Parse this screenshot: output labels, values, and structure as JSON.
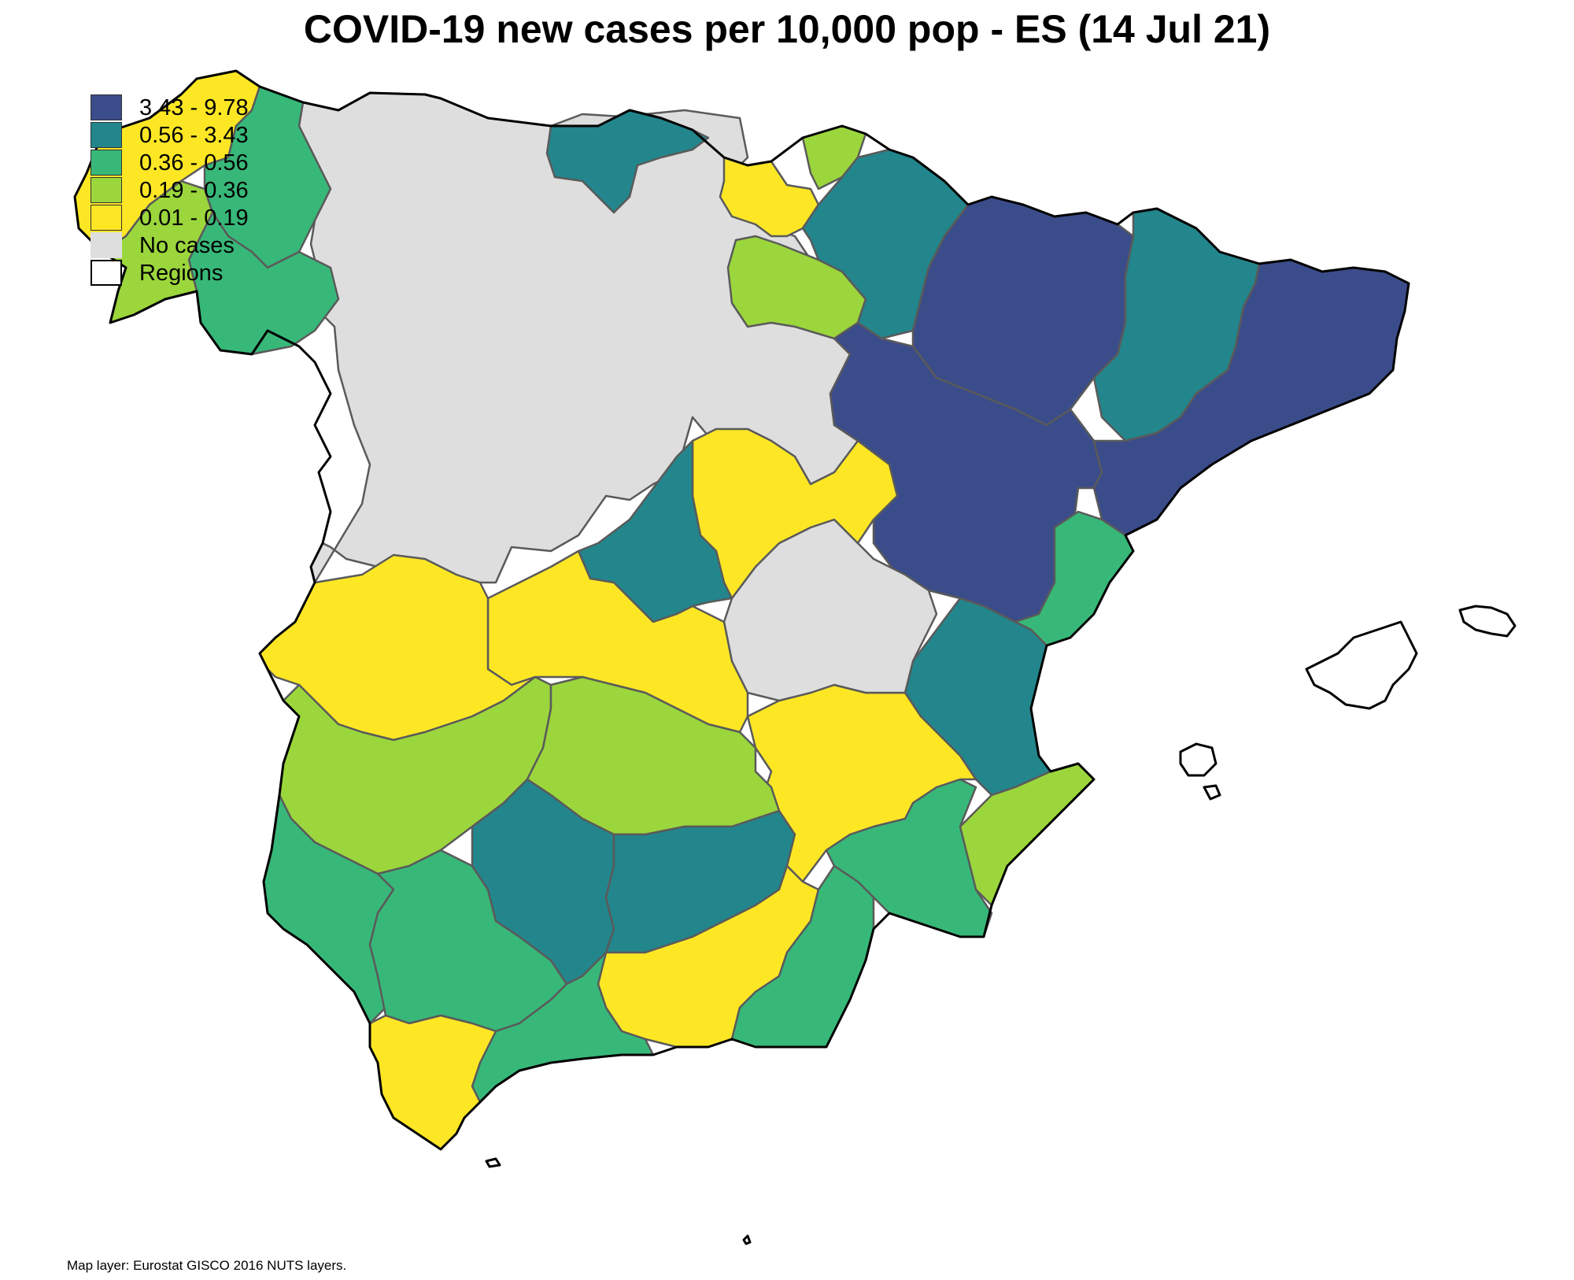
{
  "title": "COVID-19 new cases per 10,000 pop - ES (14 Jul 21)",
  "colors": {
    "c1": "#3b4c8a",
    "c2": "#22868c",
    "c3": "#37b879",
    "c4": "#9bd63c",
    "c5": "#fde725",
    "none": "#dedede"
  },
  "legend": {
    "items": [
      {
        "label": "3.43 - 9.78",
        "color": "#3b4c8a"
      },
      {
        "label": "0.56 - 3.43",
        "color": "#22868c"
      },
      {
        "label": "0.36 - 0.56",
        "color": "#37b879"
      },
      {
        "label": "0.19 - 0.36",
        "color": "#9bd63c"
      },
      {
        "label": "0.01 - 0.19",
        "color": "#fde725"
      },
      {
        "label": "No cases",
        "color": "#dedede"
      },
      {
        "label": "Regions",
        "color": "#ffffff"
      }
    ]
  },
  "source": "Map layer: Eurostat GISCO 2016 NUTS layers."
}
